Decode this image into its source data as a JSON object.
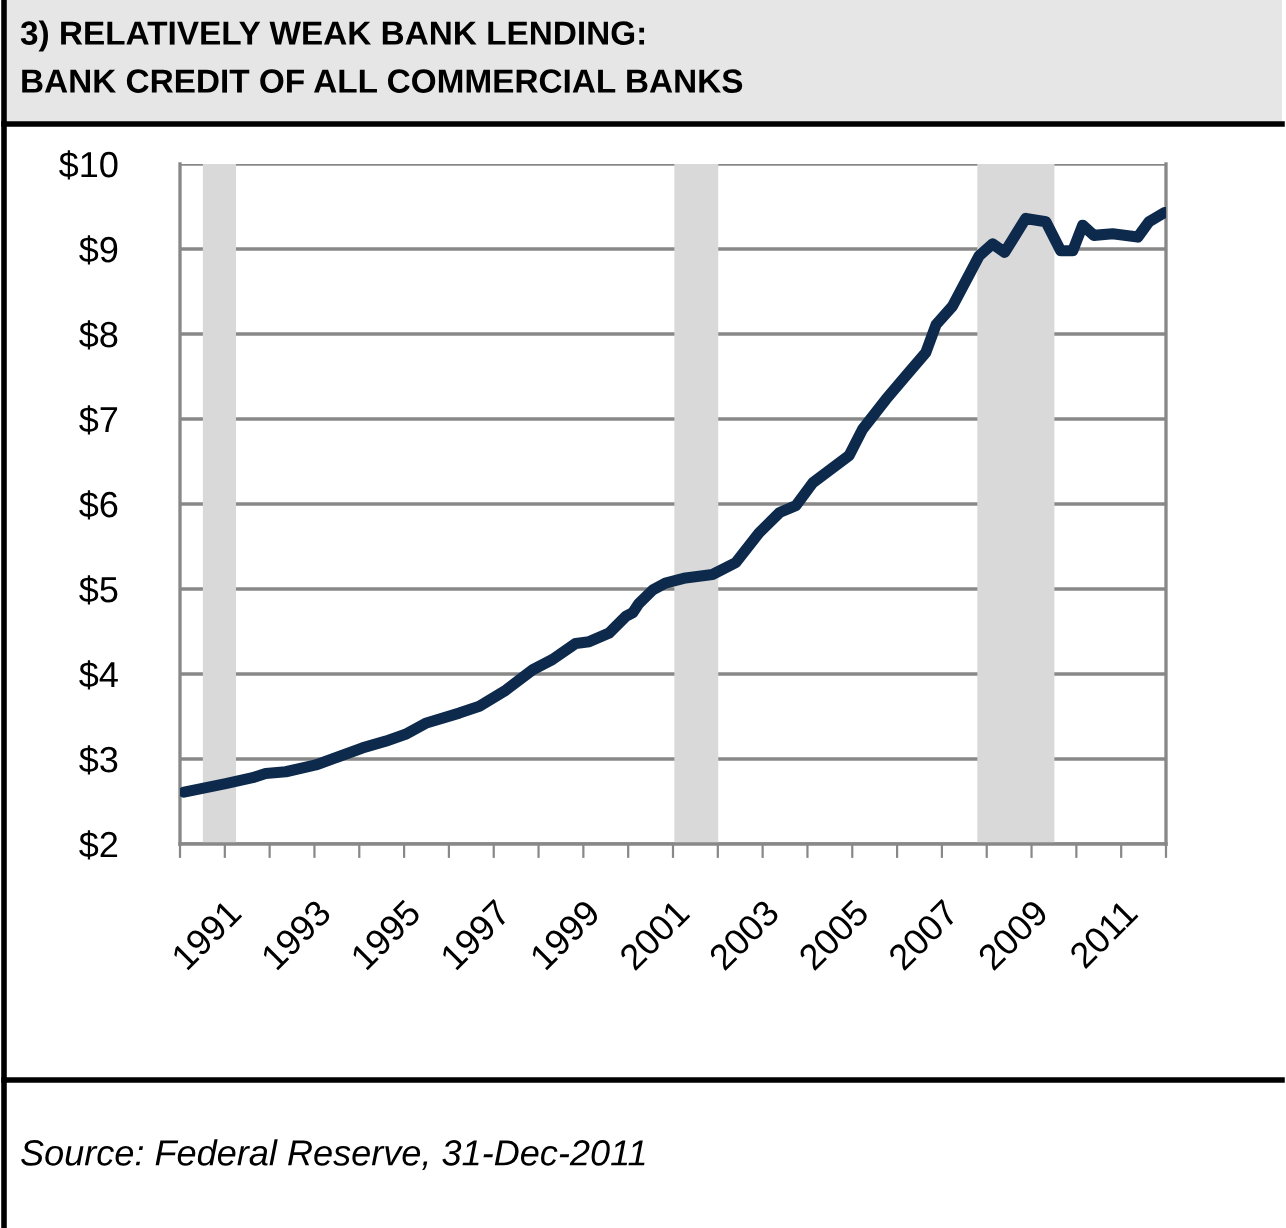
{
  "chart_data": {
    "type": "line",
    "title": "3) RELATIVELY WEAK BANK LENDING:",
    "subtitle": "BANK CREDIT OF ALL COMMERCIAL BANKS",
    "annotations": [
      "Source: Federal Reserve, 31-Dec-2011"
    ],
    "x": [
      1990.09,
      1991.02,
      1991.62,
      1991.91,
      1992.36,
      1993.03,
      1993.55,
      1994.07,
      1994.59,
      1995.03,
      1995.48,
      1996.23,
      1996.68,
      1997.27,
      1997.87,
      1998.31,
      1998.83,
      1999.13,
      1999.57,
      1999.95,
      2000.1,
      2000.24,
      2000.55,
      2000.83,
      2001.28,
      2001.88,
      2002.4,
      2002.92,
      2003.38,
      2003.74,
      2004.12,
      2004.93,
      2005.23,
      2005.75,
      2006.2,
      2006.64,
      2006.87,
      2007.24,
      2007.83,
      2008.13,
      2008.4,
      2008.87,
      2009.32,
      2009.65,
      2009.92,
      2010.14,
      2010.39,
      2010.81,
      2011.37,
      2011.62,
      2011.97
    ],
    "series": [
      {
        "color": "#0d2a4c",
        "values": [
          2.61,
          2.71,
          2.78,
          2.83,
          2.85,
          2.93,
          3.03,
          3.13,
          3.21,
          3.29,
          3.42,
          3.54,
          3.62,
          3.81,
          4.05,
          4.17,
          4.36,
          4.38,
          4.48,
          4.68,
          4.72,
          4.83,
          4.99,
          5.07,
          5.13,
          5.17,
          5.31,
          5.66,
          5.9,
          5.98,
          6.25,
          6.57,
          6.88,
          7.23,
          7.51,
          7.78,
          8.11,
          8.33,
          8.92,
          9.06,
          8.96,
          9.36,
          9.32,
          8.98,
          8.98,
          9.28,
          9.16,
          9.18,
          9.14,
          9.32,
          9.43
        ]
      }
    ],
    "line_style": "solid",
    "xlim": [
      1990,
      2012
    ],
    "xticks": [
      {
        "value": 1990,
        "label": null
      },
      {
        "value": 1991,
        "label": "1991"
      },
      {
        "value": 1992,
        "label": null
      },
      {
        "value": 1993,
        "label": "1993"
      },
      {
        "value": 1994,
        "label": null
      },
      {
        "value": 1995,
        "label": "1995"
      },
      {
        "value": 1996,
        "label": null
      },
      {
        "value": 1997,
        "label": "1997"
      },
      {
        "value": 1998,
        "label": null
      },
      {
        "value": 1999,
        "label": "1999"
      },
      {
        "value": 2000,
        "label": null
      },
      {
        "value": 2001,
        "label": "2001"
      },
      {
        "value": 2002,
        "label": null
      },
      {
        "value": 2003,
        "label": "2003"
      },
      {
        "value": 2004,
        "label": null
      },
      {
        "value": 2005,
        "label": "2005"
      },
      {
        "value": 2006,
        "label": null
      },
      {
        "value": 2007,
        "label": "2007"
      },
      {
        "value": 2008,
        "label": null
      },
      {
        "value": 2009,
        "label": "2009"
      },
      {
        "value": 2010,
        "label": null
      },
      {
        "value": 2011,
        "label": "2011"
      },
      {
        "value": 2012,
        "label": null
      }
    ],
    "ylim": [
      2,
      10
    ],
    "yticks": [
      {
        "value": 2,
        "label": "$2"
      },
      {
        "value": 3,
        "label": "$3"
      },
      {
        "value": 4,
        "label": "$4"
      },
      {
        "value": 5,
        "label": "$5"
      },
      {
        "value": 6,
        "label": "$6"
      },
      {
        "value": 7,
        "label": "$7"
      },
      {
        "value": 8,
        "label": "$8"
      },
      {
        "value": 9,
        "label": "$9"
      },
      {
        "value": 10,
        "label": "$10"
      }
    ],
    "bands": [
      {
        "axis": "x",
        "from": 1990.51,
        "to": 1991.25,
        "color": "#d9d9d9"
      },
      {
        "axis": "x",
        "from": 2001.03,
        "to": 2002.01,
        "color": "#d9d9d9"
      },
      {
        "axis": "x",
        "from": 2007.79,
        "to": 2009.51,
        "color": "#d9d9d9"
      }
    ],
    "grid": "y"
  }
}
